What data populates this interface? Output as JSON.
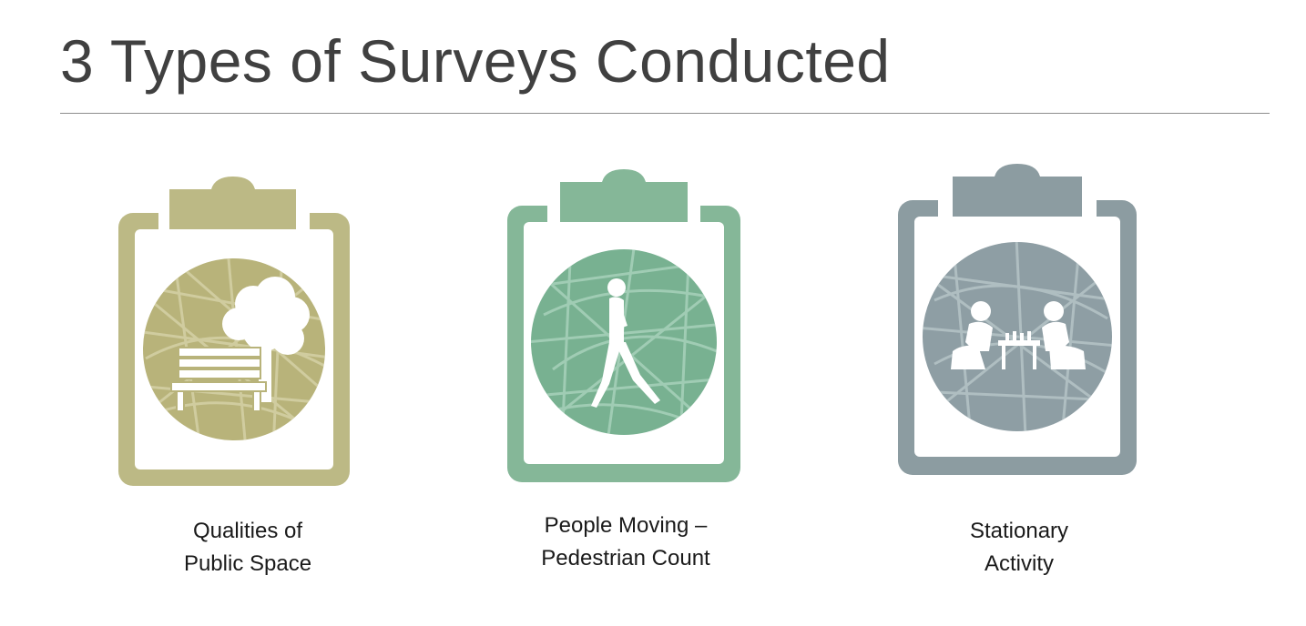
{
  "title": "3 Types of Surveys Conducted",
  "colors": {
    "olive": "#bcb985",
    "olive_map": "#b8b37a",
    "olive_street": "#d4d1a6",
    "green": "#85b798",
    "green_map": "#78b191",
    "green_street": "#a7d2ba",
    "grey": "#8c9ca1",
    "grey_map": "#8e9ea4",
    "grey_street": "#b6c3c7"
  },
  "surveys": [
    {
      "icon": "park-bench-tree-icon",
      "caption_line1": "Qualities of",
      "caption_line2": "Public Space"
    },
    {
      "icon": "walking-pedestrian-icon",
      "caption_line1": "People Moving –",
      "caption_line2": "Pedestrian Count"
    },
    {
      "icon": "people-playing-chess-icon",
      "caption_line1": "Stationary",
      "caption_line2": "Activity"
    }
  ]
}
